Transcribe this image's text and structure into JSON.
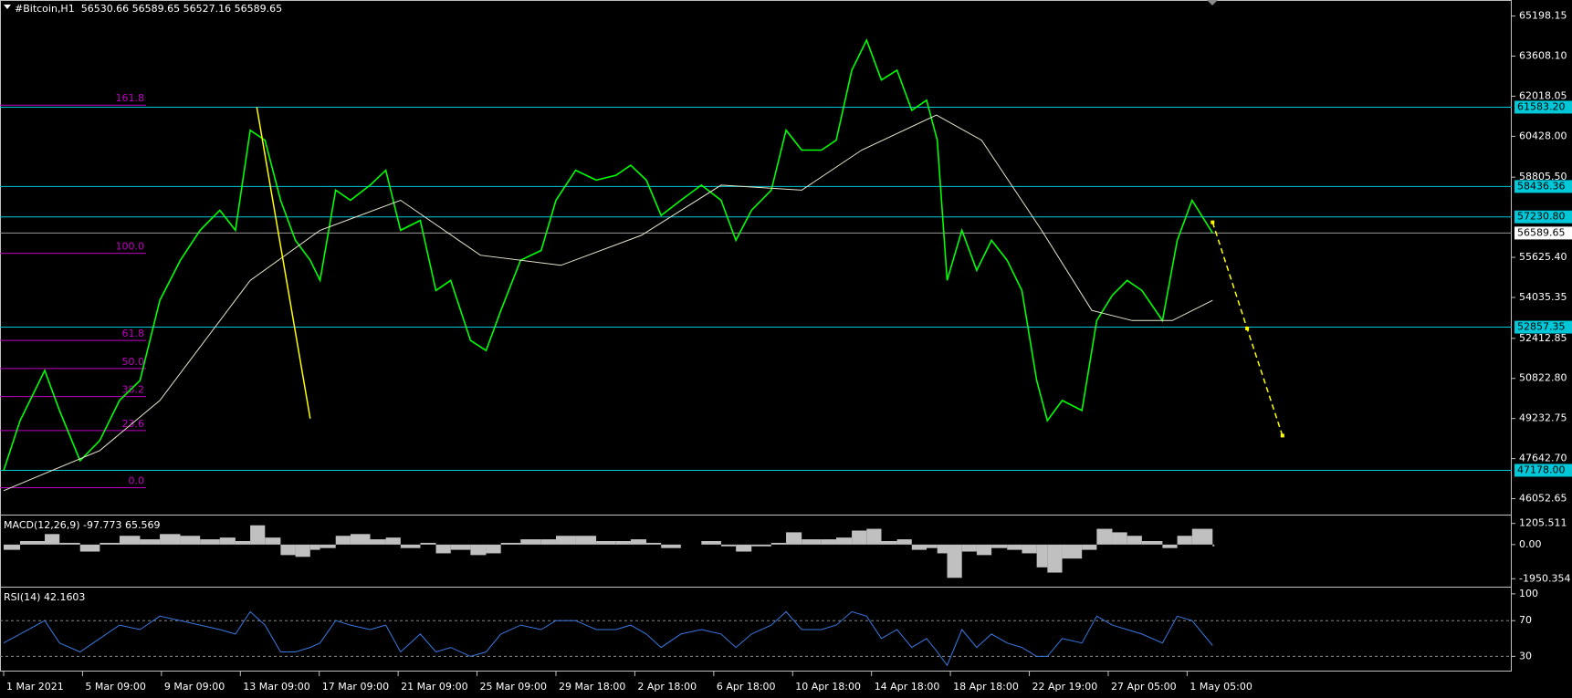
{
  "chart_data": [
    {
      "type": "line",
      "title": "#Bitcoin,H1  56530.66 56589.65 56527.16 56589.65",
      "xlim": [
        0,
        1835
      ],
      "ylim": [
        45457,
        65834
      ],
      "yticks": [
        65198.15,
        {
          "value": 63608.1,
          "label": "63608.10"
        },
        62018.05,
        {
          "value": 60428,
          "label": "60428.00"
        },
        {
          "value": 58805.5,
          "label": "58805.50"
        },
        {
          "value": 55625.4,
          "label": "55625.40"
        },
        54035.35,
        52412.85,
        {
          "value": 50822.8,
          "label": "50822.80"
        },
        49232.75,
        {
          "value": 47642.7,
          "label": "47642.70"
        },
        46052.65
      ],
      "series": [
        {
          "color": "#00ff00",
          "x": [
            0,
            20,
            50,
            68,
            93,
            117,
            141,
            166,
            190,
            215,
            239,
            263,
            282,
            300,
            318,
            337,
            355,
            373,
            385,
            404,
            422,
            446,
            465,
            483,
            507,
            526,
            544,
            568,
            587,
            605,
            629,
            654,
            672,
            696,
            721,
            745,
            763,
            782,
            800,
            824,
            849,
            873,
            891,
            910,
            934,
            952,
            971,
            995,
            1013,
            1032,
            1050,
            1068,
            1087,
            1105,
            1123,
            1136,
            1148,
            1166,
            1184,
            1202,
            1221,
            1239,
            1257,
            1270,
            1288,
            1312,
            1330,
            1349,
            1367,
            1385,
            1410,
            1428,
            1446,
            1471
          ],
          "values": [
            47170,
            49150,
            51140,
            49550,
            47560,
            48360,
            49950,
            50740,
            53920,
            55510,
            56700,
            57490,
            56700,
            60670,
            60270,
            57890,
            56300,
            55510,
            54710,
            58290,
            57890,
            58490,
            59080,
            56700,
            57090,
            54310,
            54710,
            52330,
            51930,
            53520,
            55510,
            55900,
            57890,
            59080,
            58690,
            58880,
            59280,
            58690,
            57290,
            57890,
            58490,
            57890,
            56300,
            57490,
            58290,
            60670,
            59880,
            59880,
            60270,
            63050,
            64240,
            62660,
            63050,
            61460,
            61860,
            60270,
            54710,
            56700,
            55110,
            56300,
            55510,
            54310,
            50740,
            49150,
            49950,
            49550,
            53120,
            54120,
            54710,
            54310,
            53120,
            56300,
            57890,
            56589.65
          ]
        },
        {
          "color": "#e8e8d0",
          "x": [
            0,
            117,
            190,
            300,
            385,
            483,
            580,
            678,
            776,
            873,
            971,
            1044,
            1135,
            1190,
            1263,
            1324,
            1373,
            1422,
            1471
          ],
          "values": [
            46370,
            47960,
            49950,
            54710,
            56700,
            57890,
            55710,
            55310,
            56500,
            58490,
            58290,
            59880,
            61270,
            60270,
            56700,
            53520,
            53120,
            53120,
            53920
          ]
        }
      ],
      "levels": [
        {
          "value": 61583.2,
          "label": "61583.20"
        },
        58436.36,
        {
          "value": 57230.8,
          "label": "57230.80"
        },
        52857.35,
        {
          "value": 47178,
          "label": "47178.00"
        }
      ],
      "level_color": "#00c8d8",
      "level_labels": true,
      "current": 56589.65,
      "current_color": "#9a9a9a",
      "fibs": [
        {
          "text": "161.8",
          "price": 61663
        },
        {
          "text": "100.0",
          "price": 55785
        },
        {
          "text": "61.8",
          "price": 52329
        },
        {
          "text": "50.0",
          "price": 51216
        },
        {
          "text": "38.2",
          "price": 50104
        },
        {
          "text": "23.6",
          "price": 48754
        },
        {
          "text": "0.0",
          "price": 46490
        }
      ],
      "fib_color": "#c000c0",
      "trendlines": [
        {
          "color": "#ffff00",
          "dashed": false,
          "x": [
            308,
            373
          ],
          "y": [
            61583,
            49231
          ]
        },
        {
          "color": "#ffff00",
          "dashed": true,
          "x": [
            1471,
            1513,
            1556
          ],
          "y": [
            57016,
            52805,
            48555
          ]
        }
      ]
    },
    {
      "type": "bar",
      "title": "MACD(12,26,9) -97.773 65.569",
      "color": "#c0c0c0",
      "xlim": [
        0,
        1835
      ],
      "ylim": [
        -2353,
        1607
      ],
      "yticks": [
        1205.511,
        {
          "value": 0,
          "label": "0.00"
        },
        -1950.354
      ],
      "x": [
        0,
        20,
        50,
        68,
        93,
        117,
        141,
        166,
        190,
        215,
        239,
        263,
        282,
        300,
        318,
        337,
        355,
        373,
        385,
        404,
        422,
        446,
        465,
        483,
        507,
        526,
        544,
        568,
        587,
        605,
        629,
        654,
        672,
        696,
        721,
        745,
        763,
        782,
        800,
        824,
        849,
        873,
        891,
        910,
        934,
        952,
        971,
        995,
        1013,
        1032,
        1050,
        1068,
        1087,
        1105,
        1123,
        1136,
        1148,
        1166,
        1184,
        1202,
        1221,
        1239,
        1257,
        1270,
        1288,
        1312,
        1330,
        1349,
        1367,
        1385,
        1410,
        1428,
        1446,
        1471
      ],
      "values": [
        -300,
        200,
        600,
        100,
        -400,
        100,
        500,
        300,
        600,
        500,
        300,
        400,
        200,
        1100,
        400,
        -600,
        -700,
        -300,
        -200,
        500,
        600,
        300,
        400,
        -200,
        100,
        -500,
        -300,
        -600,
        -500,
        100,
        300,
        300,
        500,
        500,
        200,
        200,
        300,
        100,
        -200,
        0,
        200,
        -100,
        -400,
        -100,
        100,
        700,
        300,
        300,
        400,
        800,
        900,
        200,
        300,
        -300,
        -200,
        -500,
        -1900,
        -400,
        -600,
        -200,
        -300,
        -500,
        -1300,
        -1600,
        -800,
        -300,
        900,
        700,
        500,
        200,
        -200,
        500,
        900,
        -98
      ]
    },
    {
      "type": "line",
      "title": "RSI(14) 42.1603",
      "xlim": [
        0,
        1835
      ],
      "ylim": [
        13,
        106
      ],
      "yticks": [
        100,
        70,
        30
      ],
      "levels": [
        70,
        30
      ],
      "level_color": "#8a8a8a",
      "level_labels": false,
      "series": [
        {
          "color": "#3a78e0",
          "x": [
            0,
            20,
            50,
            68,
            93,
            117,
            141,
            166,
            190,
            215,
            239,
            263,
            282,
            300,
            318,
            337,
            355,
            373,
            385,
            404,
            422,
            446,
            465,
            483,
            507,
            526,
            544,
            568,
            587,
            605,
            629,
            654,
            672,
            696,
            721,
            745,
            763,
            782,
            800,
            824,
            849,
            873,
            891,
            910,
            934,
            952,
            971,
            995,
            1013,
            1032,
            1050,
            1068,
            1087,
            1105,
            1123,
            1136,
            1148,
            1166,
            1184,
            1202,
            1221,
            1239,
            1257,
            1270,
            1288,
            1312,
            1330,
            1349,
            1367,
            1385,
            1410,
            1428,
            1446,
            1471
          ],
          "values": [
            45,
            55,
            70,
            45,
            35,
            50,
            65,
            60,
            75,
            70,
            65,
            60,
            55,
            80,
            65,
            35,
            35,
            40,
            45,
            70,
            65,
            60,
            65,
            35,
            55,
            35,
            40,
            30,
            35,
            55,
            65,
            60,
            70,
            70,
            60,
            60,
            65,
            55,
            40,
            55,
            60,
            55,
            40,
            55,
            65,
            80,
            60,
            60,
            65,
            80,
            75,
            50,
            60,
            40,
            50,
            35,
            20,
            60,
            40,
            55,
            45,
            40,
            30,
            30,
            50,
            45,
            75,
            65,
            60,
            55,
            45,
            75,
            70,
            42.16
          ]
        }
      ],
      "xticks": [
        {
          "value": 0,
          "label": "1 Mar 2021"
        },
        {
          "value": 96,
          "label": "5 Mar 09:00"
        },
        {
          "value": 192,
          "label": "9 Mar 09:00"
        },
        {
          "value": 288,
          "label": "13 Mar 09:00"
        },
        {
          "value": 384,
          "label": "17 Mar 09:00"
        },
        {
          "value": 480,
          "label": "21 Mar 09:00"
        },
        {
          "value": 576,
          "label": "25 Mar 09:00"
        },
        {
          "value": 672,
          "label": "29 Mar 18:00"
        },
        {
          "value": 768,
          "label": "2 Apr 18:00"
        },
        {
          "value": 864,
          "label": "6 Apr 18:00"
        },
        {
          "value": 960,
          "label": "10 Apr 18:00"
        },
        {
          "value": 1056,
          "label": "14 Apr 18:00"
        },
        {
          "value": 1152,
          "label": "18 Apr 18:00"
        },
        {
          "value": 1248,
          "label": "22 Apr 19:00"
        },
        {
          "value": 1344,
          "label": "27 Apr 05:00"
        },
        {
          "value": 1440,
          "label": "1 May 05:00"
        }
      ]
    }
  ]
}
